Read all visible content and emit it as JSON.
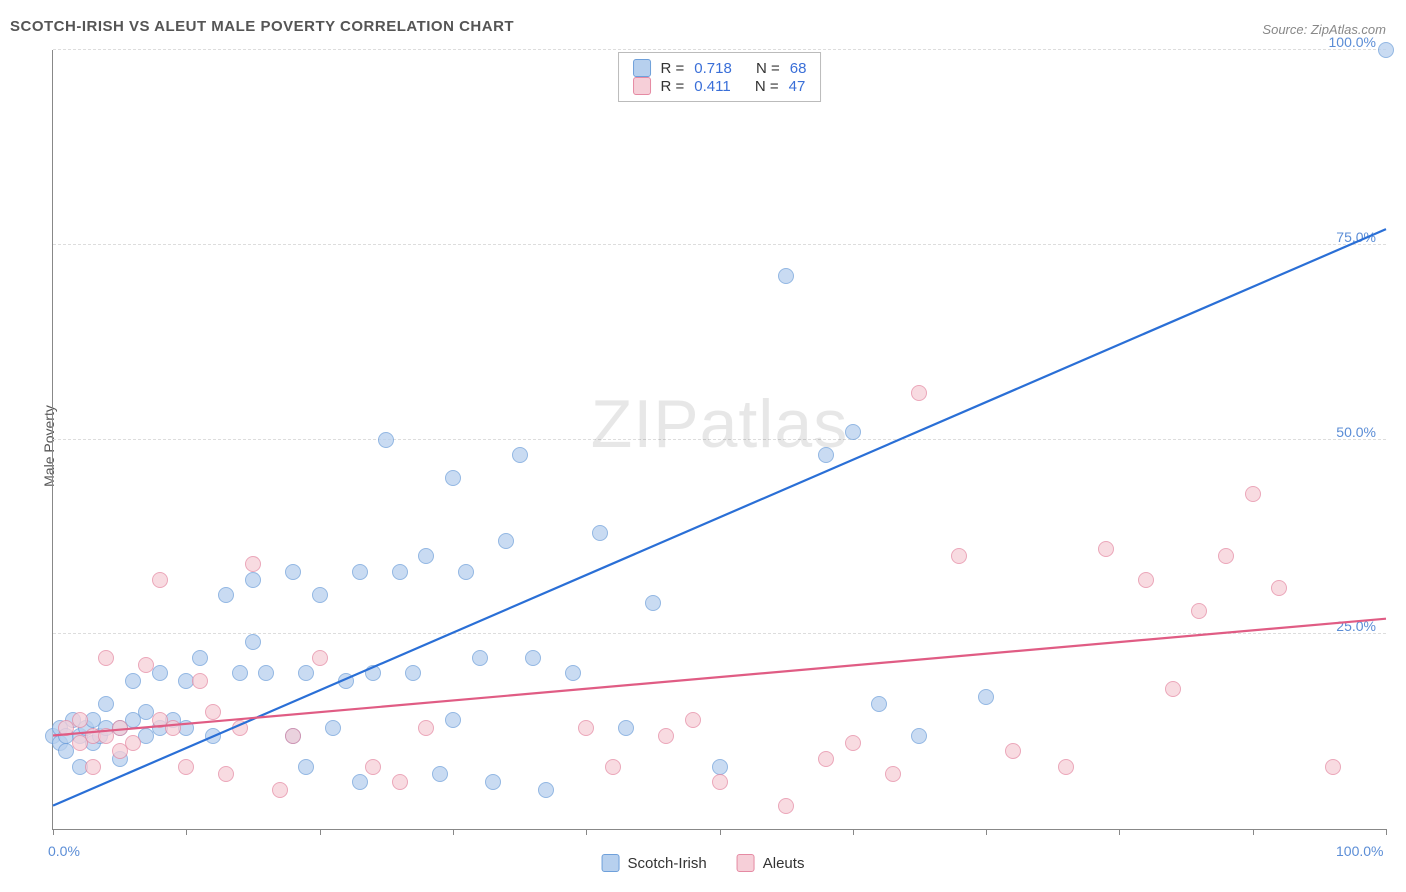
{
  "title": "SCOTCH-IRISH VS ALEUT MALE POVERTY CORRELATION CHART",
  "source_label": "Source:",
  "source_name": "ZipAtlas.com",
  "ylabel": "Male Poverty",
  "watermark_a": "ZIP",
  "watermark_b": "atlas",
  "xlim": [
    0,
    100
  ],
  "ylim": [
    0,
    100
  ],
  "xticks": [
    0,
    10,
    20,
    30,
    40,
    50,
    60,
    70,
    80,
    90,
    100
  ],
  "xtick_labels": {
    "0": "0.0%",
    "100": "100.0%"
  },
  "yticks": [
    25,
    50,
    75,
    100
  ],
  "ytick_labels": {
    "25": "25.0%",
    "50": "50.0%",
    "75": "75.0%",
    "100": "100.0%"
  },
  "grid_color": "#dddddd",
  "axis_color": "#888888",
  "background_color": "#ffffff",
  "marker_radius": 7,
  "marker_stroke_width": 1.2,
  "trend_line_width": 2.2,
  "series": [
    {
      "name": "Scotch-Irish",
      "fill": "#b7d0ee",
      "stroke": "#6fa0da",
      "line_color": "#2a6fd6",
      "R": "0.718",
      "N": "68",
      "trend": {
        "x1": 0,
        "y1": 3,
        "x2": 100,
        "y2": 77
      },
      "points": [
        [
          0,
          12
        ],
        [
          0.5,
          13
        ],
        [
          0.5,
          11
        ],
        [
          1,
          10
        ],
        [
          1,
          12
        ],
        [
          1.5,
          14
        ],
        [
          2,
          12
        ],
        [
          2,
          8
        ],
        [
          2.5,
          13
        ],
        [
          3,
          11
        ],
        [
          3,
          14
        ],
        [
          3.5,
          12
        ],
        [
          4,
          13
        ],
        [
          4,
          16
        ],
        [
          5,
          13
        ],
        [
          5,
          9
        ],
        [
          6,
          14
        ],
        [
          6,
          19
        ],
        [
          7,
          15
        ],
        [
          7,
          12
        ],
        [
          8,
          13
        ],
        [
          8,
          20
        ],
        [
          9,
          14
        ],
        [
          10,
          19
        ],
        [
          10,
          13
        ],
        [
          11,
          22
        ],
        [
          12,
          12
        ],
        [
          13,
          30
        ],
        [
          14,
          20
        ],
        [
          15,
          32
        ],
        [
          15,
          24
        ],
        [
          16,
          20
        ],
        [
          18,
          33
        ],
        [
          18,
          12
        ],
        [
          19,
          20
        ],
        [
          19,
          8
        ],
        [
          20,
          30
        ],
        [
          21,
          13
        ],
        [
          22,
          19
        ],
        [
          23,
          6
        ],
        [
          23,
          33
        ],
        [
          24,
          20
        ],
        [
          25,
          50
        ],
        [
          26,
          33
        ],
        [
          27,
          20
        ],
        [
          28,
          35
        ],
        [
          29,
          7
        ],
        [
          30,
          14
        ],
        [
          30,
          45
        ],
        [
          31,
          33
        ],
        [
          32,
          22
        ],
        [
          33,
          6
        ],
        [
          34,
          37
        ],
        [
          35,
          48
        ],
        [
          36,
          22
        ],
        [
          37,
          5
        ],
        [
          39,
          20
        ],
        [
          41,
          38
        ],
        [
          43,
          13
        ],
        [
          45,
          29
        ],
        [
          50,
          8
        ],
        [
          55,
          71
        ],
        [
          58,
          48
        ],
        [
          60,
          51
        ],
        [
          62,
          16
        ],
        [
          65,
          12
        ],
        [
          70,
          17
        ],
        [
          100,
          100
        ]
      ]
    },
    {
      "name": "Aleuts",
      "fill": "#f6cfd8",
      "stroke": "#e58aa3",
      "line_color": "#e05c84",
      "R": "0.411",
      "N": "47",
      "trend": {
        "x1": 0,
        "y1": 12,
        "x2": 100,
        "y2": 27
      },
      "points": [
        [
          1,
          13
        ],
        [
          2,
          11
        ],
        [
          2,
          14
        ],
        [
          3,
          12
        ],
        [
          3,
          8
        ],
        [
          4,
          12
        ],
        [
          4,
          22
        ],
        [
          5,
          13
        ],
        [
          5,
          10
        ],
        [
          6,
          11
        ],
        [
          7,
          21
        ],
        [
          8,
          32
        ],
        [
          8,
          14
        ],
        [
          9,
          13
        ],
        [
          10,
          8
        ],
        [
          11,
          19
        ],
        [
          12,
          15
        ],
        [
          13,
          7
        ],
        [
          14,
          13
        ],
        [
          15,
          34
        ],
        [
          17,
          5
        ],
        [
          18,
          12
        ],
        [
          20,
          22
        ],
        [
          24,
          8
        ],
        [
          26,
          6
        ],
        [
          28,
          13
        ],
        [
          40,
          13
        ],
        [
          42,
          8
        ],
        [
          46,
          12
        ],
        [
          48,
          14
        ],
        [
          50,
          6
        ],
        [
          55,
          3
        ],
        [
          58,
          9
        ],
        [
          60,
          11
        ],
        [
          63,
          7
        ],
        [
          65,
          56
        ],
        [
          68,
          35
        ],
        [
          72,
          10
        ],
        [
          76,
          8
        ],
        [
          79,
          36
        ],
        [
          82,
          32
        ],
        [
          84,
          18
        ],
        [
          86,
          28
        ],
        [
          88,
          35
        ],
        [
          90,
          43
        ],
        [
          92,
          31
        ],
        [
          96,
          8
        ]
      ]
    }
  ],
  "stat_labels": {
    "R": "R =",
    "N": "N ="
  },
  "legend_series": [
    "Scotch-Irish",
    "Aleuts"
  ]
}
